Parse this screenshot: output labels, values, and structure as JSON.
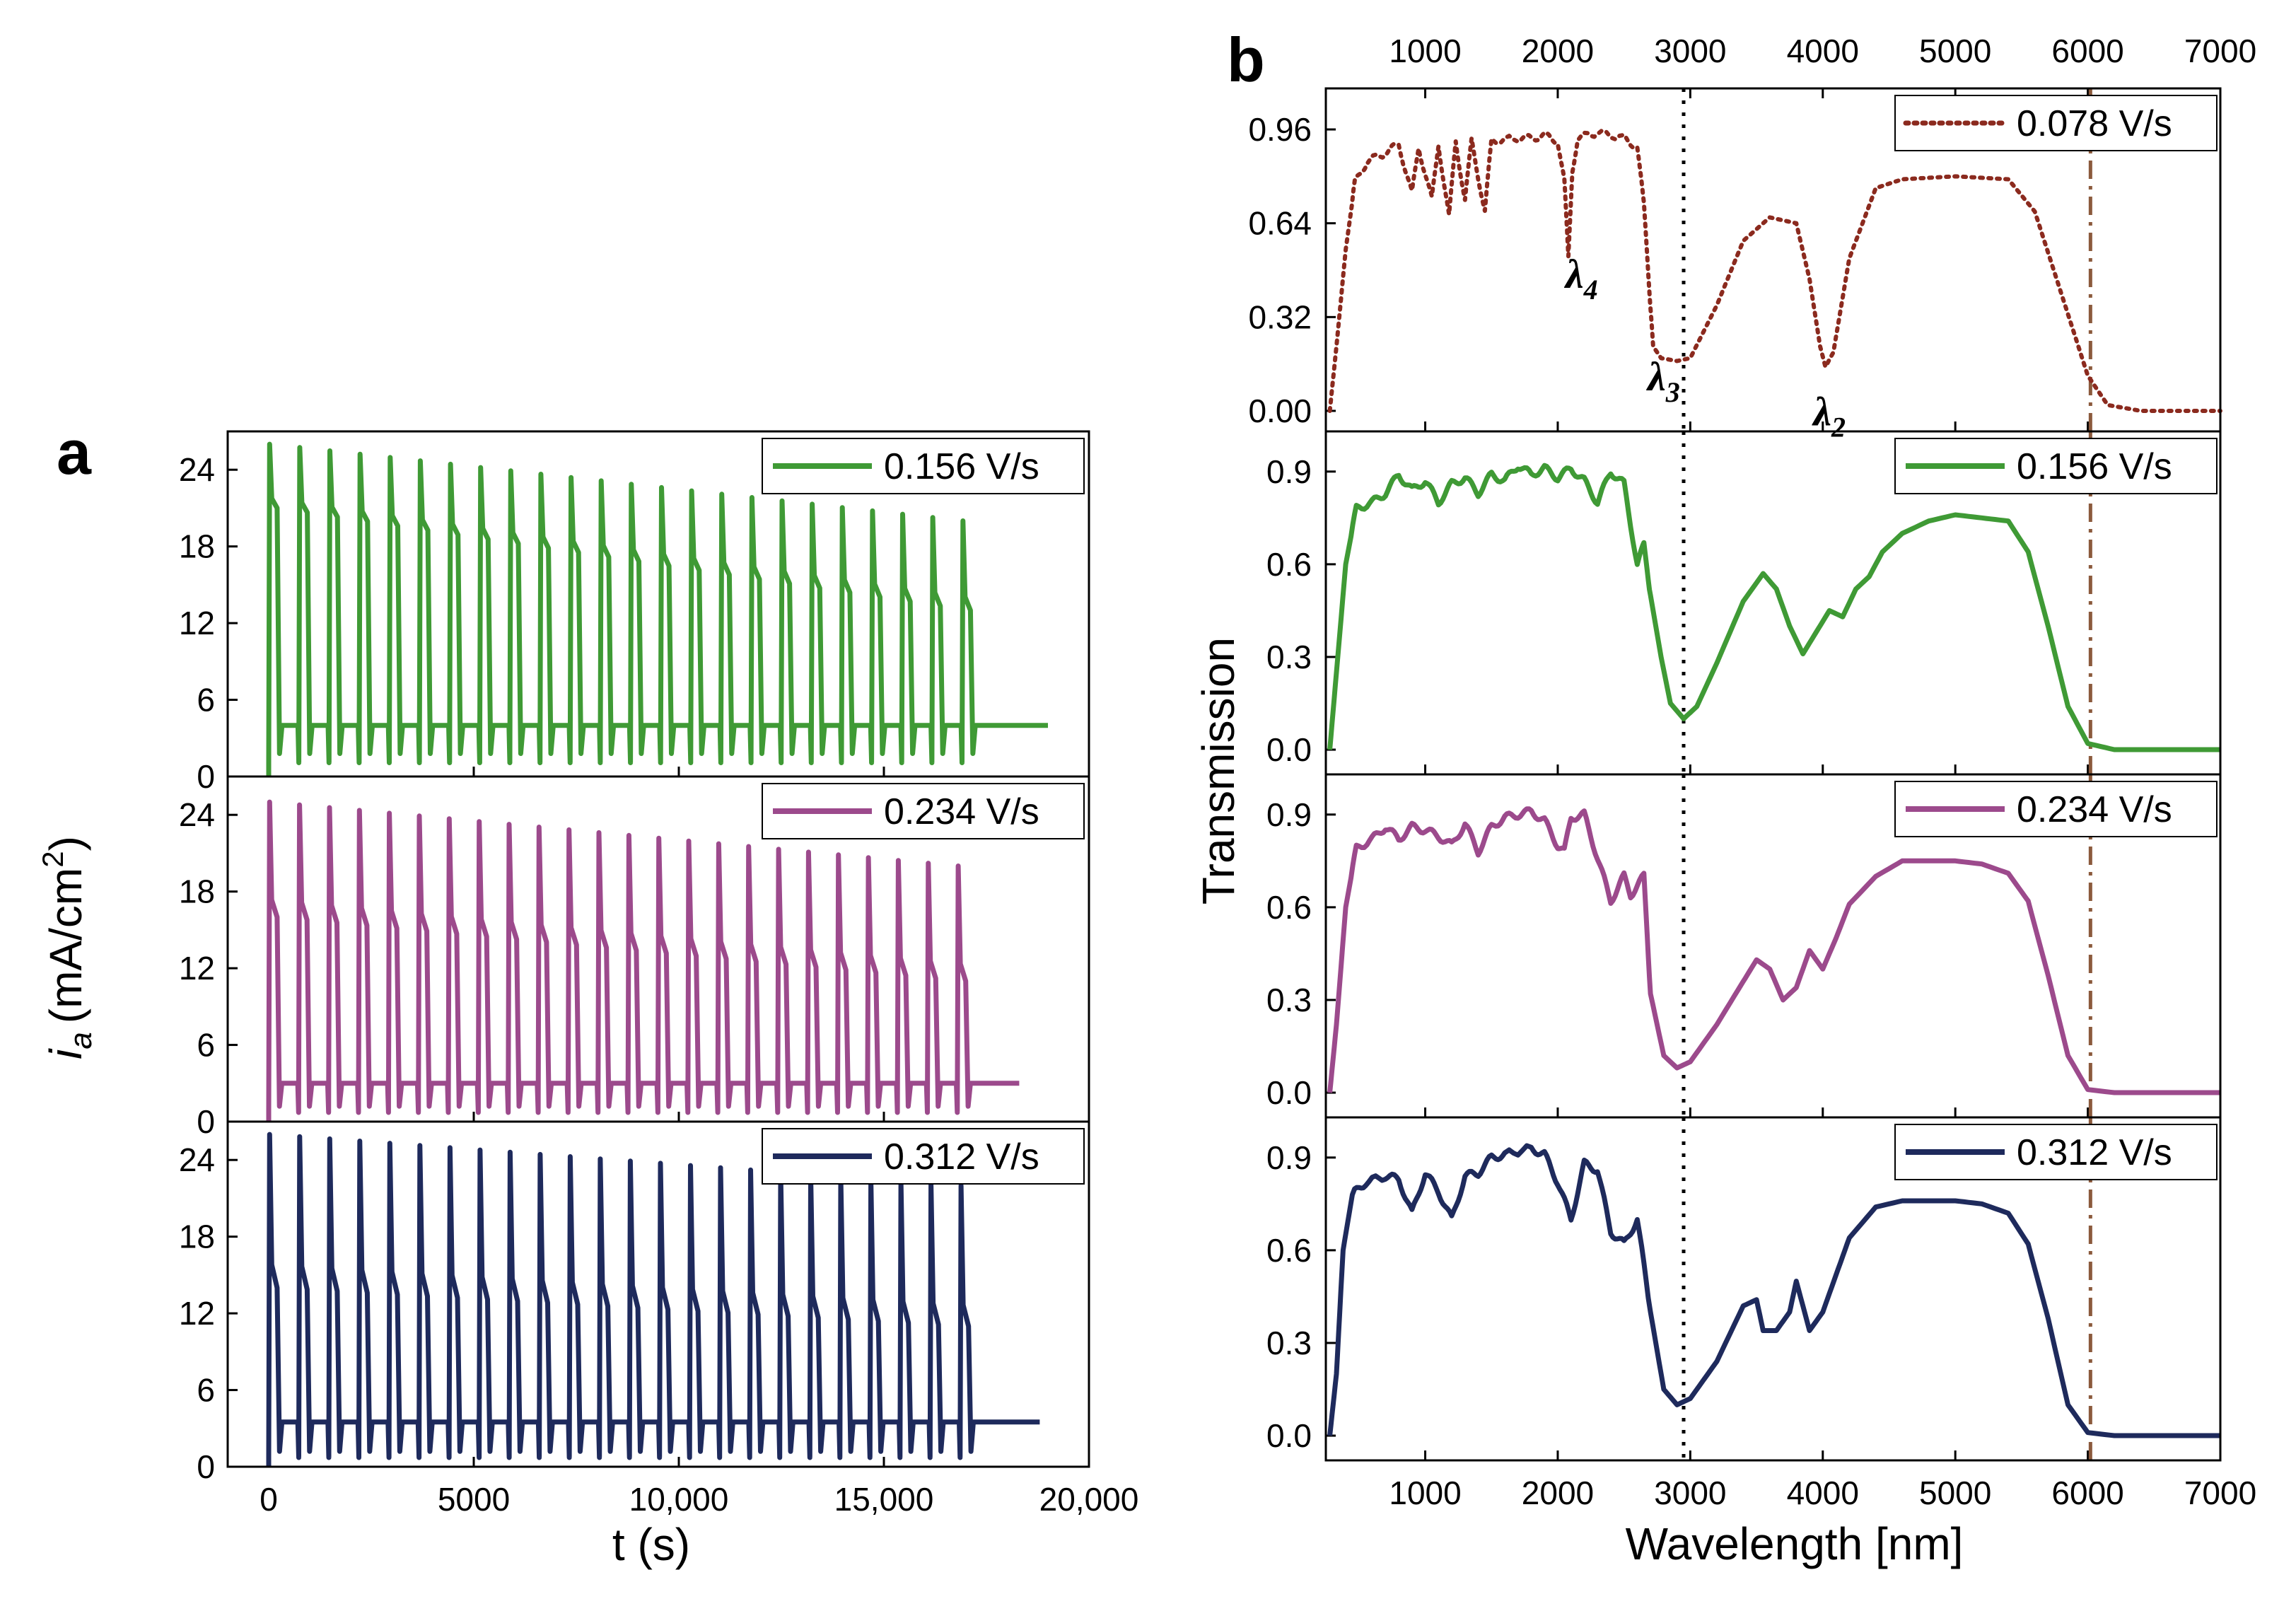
{
  "chart_data": [
    {
      "panel": "a",
      "type": "line",
      "xlabel": "t (s)",
      "ylabel_main": "i",
      "ylabel_sub": "a",
      "ylabel_unit": "(mA/cm",
      "ylabel_sup": "2",
      "ylabel_close": ")",
      "xlim": [
        -1000,
        20000
      ],
      "x_ticks": [
        0,
        5000,
        10000,
        15000,
        20000
      ],
      "x_tick_labels": [
        "0",
        "5000",
        "10,000",
        "15,000",
        "20,000"
      ],
      "ylim": [
        0,
        27
      ],
      "y_ticks": [
        0,
        6,
        12,
        18,
        24
      ],
      "y_tick_labels": [
        "0",
        "6",
        "12",
        "18",
        "24"
      ],
      "series": [
        {
          "name": "0.156 V/s",
          "color": "#3f9a35",
          "period": 735,
          "pulses": 24,
          "t_end": 19000,
          "peak": [
            26,
            20
          ],
          "plateau": [
            21,
            13
          ],
          "base": 4,
          "min": 1.8,
          "tail": 4
        },
        {
          "name": "0.234 V/s",
          "color": "#9c4a8c",
          "period": 730,
          "pulses": 24,
          "t_end": 18300,
          "peak": [
            25,
            20
          ],
          "plateau": [
            16,
            11
          ],
          "base": 3,
          "min": 1.2,
          "tail": 3
        },
        {
          "name": "0.312 V/s",
          "color": "#1e2a5c",
          "period": 733,
          "pulses": 24,
          "t_end": 18800,
          "peak": [
            26,
            22
          ],
          "plateau": [
            14,
            11
          ],
          "base": 3.5,
          "min": 1.2,
          "tail": 3.5
        }
      ]
    },
    {
      "panel": "b",
      "type": "line",
      "xlabel": "Wavelength [nm]",
      "ylabel": "Transmission",
      "xlim": [
        250,
        7000
      ],
      "x_ticks": [
        1000,
        2000,
        3000,
        4000,
        5000,
        6000,
        7000
      ],
      "x_tick_labels": [
        "1000",
        "2000",
        "3000",
        "4000",
        "5000",
        "6000",
        "7000"
      ],
      "top_x_tick_labels": [
        "1000",
        "2000",
        "3000",
        "4000",
        "5000",
        "6000",
        "7000"
      ],
      "ref_lines": [
        {
          "x": 2950,
          "style": "dotted",
          "color": "#000000"
        },
        {
          "x": 6020,
          "style": "dashdot",
          "color": "#8b5a3c"
        }
      ],
      "annotations": [
        {
          "label": "λ",
          "sub": "4",
          "x": 2180,
          "y": 0.42
        },
        {
          "label": "λ",
          "sub": "3",
          "x": 2800,
          "y": 0.07
        },
        {
          "label": "λ",
          "sub": "2",
          "x": 4050,
          "y": -0.05
        }
      ],
      "series": [
        {
          "name": "0.078 V/s",
          "color": "#8b2a1e",
          "style": "dotted",
          "ylim": [
            -0.07,
            1.1
          ],
          "y_ticks": [
            0,
            0.32,
            0.64,
            0.96
          ],
          "y_tick_labels": [
            "0.00",
            "0.32",
            "0.64",
            "0.96"
          ],
          "points": [
            [
              280,
              0.0
            ],
            [
              330,
              0.22
            ],
            [
              400,
              0.55
            ],
            [
              470,
              0.78
            ],
            [
              560,
              0.85
            ],
            [
              700,
              0.88
            ],
            [
              800,
              0.91
            ],
            [
              900,
              0.74
            ],
            [
              950,
              0.9
            ],
            [
              1050,
              0.72
            ],
            [
              1100,
              0.91
            ],
            [
              1180,
              0.66
            ],
            [
              1230,
              0.92
            ],
            [
              1300,
              0.72
            ],
            [
              1350,
              0.92
            ],
            [
              1450,
              0.68
            ],
            [
              1500,
              0.92
            ],
            [
              1700,
              0.93
            ],
            [
              1800,
              0.93
            ],
            [
              1900,
              0.94
            ],
            [
              2000,
              0.92
            ],
            [
              2050,
              0.78
            ],
            [
              2080,
              0.52
            ],
            [
              2110,
              0.82
            ],
            [
              2150,
              0.93
            ],
            [
              2300,
              0.95
            ],
            [
              2500,
              0.93
            ],
            [
              2600,
              0.9
            ],
            [
              2650,
              0.7
            ],
            [
              2720,
              0.22
            ],
            [
              2780,
              0.18
            ],
            [
              2900,
              0.17
            ],
            [
              3000,
              0.18
            ],
            [
              3200,
              0.36
            ],
            [
              3400,
              0.58
            ],
            [
              3600,
              0.66
            ],
            [
              3800,
              0.64
            ],
            [
              3900,
              0.45
            ],
            [
              3980,
              0.22
            ],
            [
              4020,
              0.15
            ],
            [
              4080,
              0.2
            ],
            [
              4200,
              0.52
            ],
            [
              4400,
              0.76
            ],
            [
              4600,
              0.79
            ],
            [
              5000,
              0.8
            ],
            [
              5400,
              0.79
            ],
            [
              5600,
              0.68
            ],
            [
              5800,
              0.4
            ],
            [
              6000,
              0.12
            ],
            [
              6150,
              0.02
            ],
            [
              6400,
              0.0
            ],
            [
              7000,
              0.0
            ]
          ]
        },
        {
          "name": "0.156 V/s",
          "color": "#3f9a35",
          "style": "solid",
          "ylim": [
            -0.08,
            1.03
          ],
          "y_ticks": [
            0,
            0.3,
            0.6,
            0.9
          ],
          "y_tick_labels": [
            "0.0",
            "0.3",
            "0.6",
            "0.9"
          ],
          "points": [
            [
              280,
              0.0
            ],
            [
              330,
              0.25
            ],
            [
              400,
              0.6
            ],
            [
              480,
              0.78
            ],
            [
              600,
              0.8
            ],
            [
              700,
              0.83
            ],
            [
              800,
              0.89
            ],
            [
              900,
              0.84
            ],
            [
              1000,
              0.87
            ],
            [
              1100,
              0.8
            ],
            [
              1200,
              0.86
            ],
            [
              1300,
              0.88
            ],
            [
              1400,
              0.83
            ],
            [
              1500,
              0.89
            ],
            [
              1600,
              0.87
            ],
            [
              1700,
              0.92
            ],
            [
              1800,
              0.89
            ],
            [
              1900,
              0.91
            ],
            [
              2000,
              0.88
            ],
            [
              2100,
              0.91
            ],
            [
              2200,
              0.87
            ],
            [
              2300,
              0.8
            ],
            [
              2400,
              0.9
            ],
            [
              2500,
              0.86
            ],
            [
              2600,
              0.6
            ],
            [
              2650,
              0.66
            ],
            [
              2700,
              0.5
            ],
            [
              2780,
              0.3
            ],
            [
              2850,
              0.15
            ],
            [
              2950,
              0.1
            ],
            [
              3050,
              0.14
            ],
            [
              3200,
              0.28
            ],
            [
              3400,
              0.48
            ],
            [
              3550,
              0.57
            ],
            [
              3650,
              0.52
            ],
            [
              3750,
              0.4
            ],
            [
              3850,
              0.31
            ],
            [
              3950,
              0.38
            ],
            [
              4050,
              0.45
            ],
            [
              4150,
              0.43
            ],
            [
              4250,
              0.52
            ],
            [
              4350,
              0.56
            ],
            [
              4450,
              0.64
            ],
            [
              4600,
              0.7
            ],
            [
              4800,
              0.74
            ],
            [
              5000,
              0.76
            ],
            [
              5200,
              0.75
            ],
            [
              5400,
              0.74
            ],
            [
              5550,
              0.64
            ],
            [
              5700,
              0.4
            ],
            [
              5850,
              0.14
            ],
            [
              6000,
              0.02
            ],
            [
              6200,
              0.0
            ],
            [
              7000,
              0.0
            ]
          ]
        },
        {
          "name": "0.234 V/s",
          "color": "#9c4a8c",
          "style": "solid",
          "ylim": [
            -0.08,
            1.03
          ],
          "y_ticks": [
            0,
            0.3,
            0.6,
            0.9
          ],
          "y_tick_labels": [
            "0.0",
            "0.3",
            "0.6",
            "0.9"
          ],
          "points": [
            [
              280,
              0.0
            ],
            [
              330,
              0.22
            ],
            [
              400,
              0.6
            ],
            [
              480,
              0.79
            ],
            [
              600,
              0.82
            ],
            [
              700,
              0.86
            ],
            [
              800,
              0.82
            ],
            [
              900,
              0.86
            ],
            [
              1000,
              0.85
            ],
            [
              1100,
              0.83
            ],
            [
              1200,
              0.8
            ],
            [
              1300,
              0.87
            ],
            [
              1400,
              0.78
            ],
            [
              1500,
              0.86
            ],
            [
              1600,
              0.89
            ],
            [
              1700,
              0.9
            ],
            [
              1800,
              0.91
            ],
            [
              1900,
              0.88
            ],
            [
              2000,
              0.8
            ],
            [
              2050,
              0.78
            ],
            [
              2100,
              0.89
            ],
            [
              2200,
              0.9
            ],
            [
              2300,
              0.76
            ],
            [
              2400,
              0.62
            ],
            [
              2500,
              0.7
            ],
            [
              2550,
              0.64
            ],
            [
              2650,
              0.7
            ],
            [
              2700,
              0.32
            ],
            [
              2800,
              0.12
            ],
            [
              2900,
              0.08
            ],
            [
              3000,
              0.1
            ],
            [
              3200,
              0.22
            ],
            [
              3400,
              0.36
            ],
            [
              3500,
              0.43
            ],
            [
              3600,
              0.4
            ],
            [
              3700,
              0.3
            ],
            [
              3800,
              0.34
            ],
            [
              3900,
              0.46
            ],
            [
              4000,
              0.4
            ],
            [
              4100,
              0.5
            ],
            [
              4200,
              0.61
            ],
            [
              4400,
              0.7
            ],
            [
              4600,
              0.75
            ],
            [
              4800,
              0.75
            ],
            [
              5000,
              0.75
            ],
            [
              5200,
              0.74
            ],
            [
              5400,
              0.71
            ],
            [
              5550,
              0.62
            ],
            [
              5700,
              0.38
            ],
            [
              5850,
              0.12
            ],
            [
              6000,
              0.01
            ],
            [
              6200,
              0.0
            ],
            [
              7000,
              0.0
            ]
          ]
        },
        {
          "name": "0.312 V/s",
          "color": "#1e2a5c",
          "style": "solid",
          "ylim": [
            -0.08,
            1.03
          ],
          "y_ticks": [
            0,
            0.3,
            0.6,
            0.9
          ],
          "y_tick_labels": [
            "0.0",
            "0.3",
            "0.6",
            "0.9"
          ],
          "points": [
            [
              280,
              0.0
            ],
            [
              330,
              0.2
            ],
            [
              380,
              0.6
            ],
            [
              450,
              0.78
            ],
            [
              550,
              0.82
            ],
            [
              700,
              0.84
            ],
            [
              800,
              0.83
            ],
            [
              900,
              0.72
            ],
            [
              1000,
              0.85
            ],
            [
              1100,
              0.79
            ],
            [
              1200,
              0.7
            ],
            [
              1300,
              0.84
            ],
            [
              1400,
              0.85
            ],
            [
              1500,
              0.9
            ],
            [
              1600,
              0.91
            ],
            [
              1800,
              0.93
            ],
            [
              1900,
              0.91
            ],
            [
              2000,
              0.82
            ],
            [
              2100,
              0.7
            ],
            [
              2200,
              0.88
            ],
            [
              2300,
              0.86
            ],
            [
              2400,
              0.66
            ],
            [
              2500,
              0.62
            ],
            [
              2600,
              0.7
            ],
            [
              2700,
              0.4
            ],
            [
              2800,
              0.15
            ],
            [
              2900,
              0.1
            ],
            [
              3000,
              0.12
            ],
            [
              3200,
              0.24
            ],
            [
              3400,
              0.42
            ],
            [
              3500,
              0.44
            ],
            [
              3550,
              0.34
            ],
            [
              3650,
              0.34
            ],
            [
              3750,
              0.4
            ],
            [
              3800,
              0.5
            ],
            [
              3900,
              0.34
            ],
            [
              4000,
              0.4
            ],
            [
              4100,
              0.52
            ],
            [
              4200,
              0.64
            ],
            [
              4400,
              0.74
            ],
            [
              4600,
              0.76
            ],
            [
              4800,
              0.76
            ],
            [
              5000,
              0.76
            ],
            [
              5200,
              0.75
            ],
            [
              5400,
              0.72
            ],
            [
              5550,
              0.62
            ],
            [
              5700,
              0.38
            ],
            [
              5850,
              0.1
            ],
            [
              6000,
              0.01
            ],
            [
              6200,
              0.0
            ],
            [
              7000,
              0.0
            ]
          ]
        }
      ]
    }
  ]
}
